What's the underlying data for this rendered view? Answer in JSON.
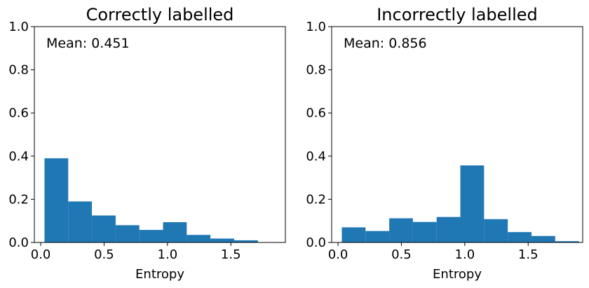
{
  "chart_data": [
    {
      "type": "bar",
      "title": "Correctly labelled",
      "xlabel": "Entropy",
      "ylabel": "",
      "xlim": [
        -0.05,
        1.93
      ],
      "ylim": [
        0,
        1.0
      ],
      "xticks": [
        "0.0",
        "0.5",
        "1.0",
        "1.5"
      ],
      "yticks": [
        "0.0",
        "0.2",
        "0.4",
        "0.6",
        "0.8",
        "1.0"
      ],
      "annotation": "Mean: 0.451",
      "bar_color": "#1f77b4",
      "bin_edges": [
        0.03,
        0.217,
        0.404,
        0.591,
        0.778,
        0.965,
        1.152,
        1.339,
        1.526,
        1.713
      ],
      "values": [
        0.39,
        0.19,
        0.125,
        0.08,
        0.058,
        0.094,
        0.035,
        0.018,
        0.01
      ]
    },
    {
      "type": "bar",
      "title": "Incorrectly labelled",
      "xlabel": "Entropy",
      "ylabel": "",
      "xlim": [
        -0.05,
        1.93
      ],
      "ylim": [
        0,
        1.0
      ],
      "xticks": [
        "0.0",
        "0.5",
        "1.0",
        "1.5"
      ],
      "yticks": [
        "0.0",
        "0.2",
        "0.4",
        "0.6",
        "0.8",
        "1.0"
      ],
      "annotation": "Mean: 0.856",
      "bar_color": "#1f77b4",
      "bin_edges": [
        0.03,
        0.217,
        0.404,
        0.591,
        0.778,
        0.965,
        1.152,
        1.339,
        1.526,
        1.713,
        1.9
      ],
      "values": [
        0.07,
        0.053,
        0.112,
        0.095,
        0.118,
        0.357,
        0.108,
        0.048,
        0.03,
        0.006
      ]
    }
  ]
}
